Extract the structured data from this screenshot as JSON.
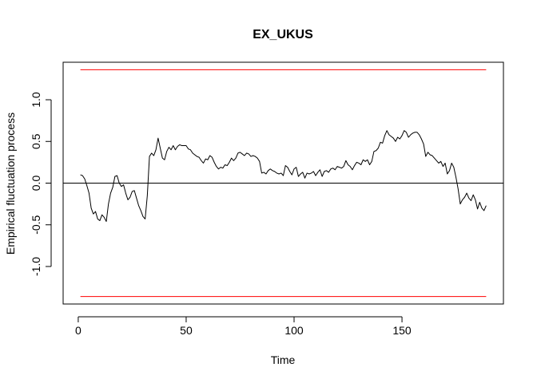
{
  "chart_data": {
    "type": "line",
    "title": "EX_UKUS",
    "xlabel": "Time",
    "ylabel": "Empirical fluctuation process",
    "xlim": [
      -7,
      197
    ],
    "ylim": [
      -1.45,
      1.45
    ],
    "x_ticks": [
      0,
      50,
      100,
      150
    ],
    "y_ticks": [
      -1.0,
      -0.5,
      0.0,
      0.5,
      1.0
    ],
    "x_tick_labels": [
      "0",
      "50",
      "100",
      "150"
    ],
    "y_tick_labels": [
      "-1.0",
      "-0.5",
      "0.0",
      "0.5",
      "1.0"
    ],
    "grid": false,
    "reference_line": {
      "y": 0,
      "color": "#000000"
    },
    "boundaries": {
      "upper": 1.36,
      "lower": -1.36,
      "x_range": [
        1,
        189
      ],
      "color": "#ff0000"
    },
    "series": [
      {
        "color": "#000000",
        "points": [
          [
            1,
            0.1
          ],
          [
            2,
            0.09
          ],
          [
            3,
            0.05
          ],
          [
            4,
            -0.03
          ],
          [
            5,
            -0.12
          ],
          [
            6,
            -0.3
          ],
          [
            7,
            -0.37
          ],
          [
            8,
            -0.34
          ],
          [
            9,
            -0.43
          ],
          [
            10,
            -0.45
          ],
          [
            11,
            -0.38
          ],
          [
            12,
            -0.41
          ],
          [
            13,
            -0.46
          ],
          [
            14,
            -0.25
          ],
          [
            15,
            -0.12
          ],
          [
            16,
            -0.05
          ],
          [
            17,
            0.08
          ],
          [
            18,
            0.09
          ],
          [
            19,
            0.0
          ],
          [
            20,
            -0.04
          ],
          [
            21,
            -0.02
          ],
          [
            22,
            -0.12
          ],
          [
            23,
            -0.2
          ],
          [
            24,
            -0.17
          ],
          [
            25,
            -0.1
          ],
          [
            26,
            -0.09
          ],
          [
            27,
            -0.18
          ],
          [
            28,
            -0.27
          ],
          [
            29,
            -0.33
          ],
          [
            30,
            -0.4
          ],
          [
            31,
            -0.43
          ],
          [
            32,
            -0.15
          ],
          [
            33,
            0.32
          ],
          [
            34,
            0.36
          ],
          [
            35,
            0.33
          ],
          [
            36,
            0.4
          ],
          [
            37,
            0.54
          ],
          [
            38,
            0.42
          ],
          [
            39,
            0.3
          ],
          [
            40,
            0.28
          ],
          [
            41,
            0.38
          ],
          [
            42,
            0.43
          ],
          [
            43,
            0.4
          ],
          [
            44,
            0.45
          ],
          [
            45,
            0.4
          ],
          [
            46,
            0.44
          ],
          [
            47,
            0.46
          ],
          [
            48,
            0.45
          ],
          [
            49,
            0.45
          ],
          [
            50,
            0.45
          ],
          [
            51,
            0.41
          ],
          [
            52,
            0.4
          ],
          [
            53,
            0.36
          ],
          [
            54,
            0.34
          ],
          [
            55,
            0.32
          ],
          [
            56,
            0.31
          ],
          [
            57,
            0.27
          ],
          [
            58,
            0.24
          ],
          [
            59,
            0.29
          ],
          [
            60,
            0.28
          ],
          [
            61,
            0.33
          ],
          [
            62,
            0.31
          ],
          [
            63,
            0.25
          ],
          [
            64,
            0.2
          ],
          [
            65,
            0.17
          ],
          [
            66,
            0.19
          ],
          [
            67,
            0.18
          ],
          [
            68,
            0.22
          ],
          [
            69,
            0.21
          ],
          [
            70,
            0.25
          ],
          [
            71,
            0.3
          ],
          [
            72,
            0.27
          ],
          [
            73,
            0.3
          ],
          [
            74,
            0.36
          ],
          [
            75,
            0.37
          ],
          [
            76,
            0.35
          ],
          [
            77,
            0.33
          ],
          [
            78,
            0.36
          ],
          [
            79,
            0.35
          ],
          [
            80,
            0.32
          ],
          [
            81,
            0.33
          ],
          [
            82,
            0.32
          ],
          [
            83,
            0.3
          ],
          [
            84,
            0.26
          ],
          [
            85,
            0.12
          ],
          [
            86,
            0.13
          ],
          [
            87,
            0.11
          ],
          [
            88,
            0.15
          ],
          [
            89,
            0.17
          ],
          [
            90,
            0.15
          ],
          [
            91,
            0.14
          ],
          [
            92,
            0.12
          ],
          [
            93,
            0.11
          ],
          [
            94,
            0.12
          ],
          [
            95,
            0.09
          ],
          [
            96,
            0.21
          ],
          [
            97,
            0.19
          ],
          [
            98,
            0.14
          ],
          [
            99,
            0.1
          ],
          [
            100,
            0.17
          ],
          [
            101,
            0.19
          ],
          [
            102,
            0.08
          ],
          [
            103,
            0.11
          ],
          [
            104,
            0.13
          ],
          [
            105,
            0.06
          ],
          [
            106,
            0.12
          ],
          [
            107,
            0.11
          ],
          [
            108,
            0.12
          ],
          [
            109,
            0.14
          ],
          [
            110,
            0.09
          ],
          [
            111,
            0.13
          ],
          [
            112,
            0.16
          ],
          [
            113,
            0.08
          ],
          [
            114,
            0.14
          ],
          [
            115,
            0.15
          ],
          [
            116,
            0.13
          ],
          [
            117,
            0.17
          ],
          [
            118,
            0.18
          ],
          [
            119,
            0.16
          ],
          [
            120,
            0.2
          ],
          [
            121,
            0.19
          ],
          [
            122,
            0.18
          ],
          [
            123,
            0.2
          ],
          [
            124,
            0.27
          ],
          [
            125,
            0.22
          ],
          [
            126,
            0.2
          ],
          [
            127,
            0.16
          ],
          [
            128,
            0.21
          ],
          [
            129,
            0.25
          ],
          [
            130,
            0.24
          ],
          [
            131,
            0.22
          ],
          [
            132,
            0.28
          ],
          [
            133,
            0.26
          ],
          [
            134,
            0.28
          ],
          [
            135,
            0.22
          ],
          [
            136,
            0.26
          ],
          [
            137,
            0.38
          ],
          [
            138,
            0.39
          ],
          [
            139,
            0.42
          ],
          [
            140,
            0.49
          ],
          [
            141,
            0.48
          ],
          [
            142,
            0.57
          ],
          [
            143,
            0.63
          ],
          [
            144,
            0.58
          ],
          [
            145,
            0.56
          ],
          [
            146,
            0.54
          ],
          [
            147,
            0.5
          ],
          [
            148,
            0.55
          ],
          [
            149,
            0.53
          ],
          [
            150,
            0.57
          ],
          [
            151,
            0.63
          ],
          [
            152,
            0.61
          ],
          [
            153,
            0.55
          ],
          [
            154,
            0.58
          ],
          [
            155,
            0.6
          ],
          [
            156,
            0.61
          ],
          [
            157,
            0.61
          ],
          [
            158,
            0.58
          ],
          [
            159,
            0.53
          ],
          [
            160,
            0.47
          ],
          [
            161,
            0.32
          ],
          [
            162,
            0.37
          ],
          [
            163,
            0.34
          ],
          [
            164,
            0.33
          ],
          [
            165,
            0.3
          ],
          [
            166,
            0.27
          ],
          [
            167,
            0.24
          ],
          [
            168,
            0.26
          ],
          [
            169,
            0.2
          ],
          [
            170,
            0.24
          ],
          [
            171,
            0.11
          ],
          [
            172,
            0.15
          ],
          [
            173,
            0.24
          ],
          [
            174,
            0.19
          ],
          [
            175,
            0.07
          ],
          [
            176,
            -0.07
          ],
          [
            177,
            -0.25
          ],
          [
            178,
            -0.2
          ],
          [
            179,
            -0.17
          ],
          [
            180,
            -0.12
          ],
          [
            181,
            -0.18
          ],
          [
            182,
            -0.21
          ],
          [
            183,
            -0.14
          ],
          [
            184,
            -0.2
          ],
          [
            185,
            -0.31
          ],
          [
            186,
            -0.23
          ],
          [
            187,
            -0.3
          ],
          [
            188,
            -0.33
          ],
          [
            189,
            -0.27
          ]
        ]
      }
    ]
  }
}
